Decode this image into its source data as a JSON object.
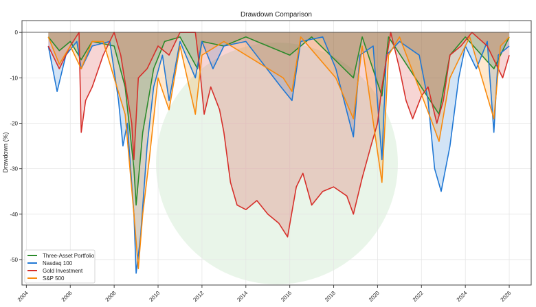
{
  "chart_data": {
    "type": "line",
    "title": "Drawdown Comparison",
    "xlabel": "",
    "ylabel": "Drawdown (%)",
    "xlim": [
      2003.8,
      2027.0
    ],
    "ylim": [
      -55.6,
      2.6
    ],
    "x_ticks": [
      "2004",
      "2006",
      "2008",
      "2010",
      "2012",
      "2014",
      "2016",
      "2018",
      "2020",
      "2022",
      "2024",
      "2026"
    ],
    "y_ticks": [
      0,
      -10,
      -20,
      -30,
      -40,
      -50
    ],
    "grid": true,
    "legend_placement": "lower-left",
    "area_fill": true,
    "series": [
      {
        "name": "Three-Asset Portfolio",
        "color": "#2a8a2a",
        "x": [
          2005,
          2005.5,
          2006,
          2006.5,
          2007,
          2008,
          2008.5,
          2008.9,
          2009.0,
          2009.3,
          2009.8,
          2010.3,
          2011,
          2011.8,
          2012,
          2013,
          2014,
          2016,
          2017,
          2018.9,
          2019.3,
          2020.2,
          2020.5,
          2022.8,
          2023.3,
          2024,
          2025.3,
          2026
        ],
        "y": [
          -1,
          -4,
          -2,
          -6,
          -2,
          -3,
          -12,
          -30,
          -38,
          -22,
          -8,
          -2,
          -1,
          -8,
          -2,
          -3,
          -1,
          -5,
          -1,
          -10,
          -1,
          -14,
          -1,
          -18,
          -5,
          -1,
          -8,
          -1
        ]
      },
      {
        "name": "Nasdaq 100",
        "color": "#1f77d4",
        "x": [
          2005,
          2005.4,
          2005.8,
          2006.3,
          2006.5,
          2007,
          2007.8,
          2008.2,
          2008.4,
          2008.6,
          2008.9,
          2009.0,
          2009.2,
          2009.5,
          2009.8,
          2010.2,
          2010.5,
          2011,
          2011.7,
          2012,
          2012.5,
          2013,
          2014,
          2015.6,
          2016.1,
          2016.5,
          2017.5,
          2018.1,
          2018.9,
          2019.2,
          2019.8,
          2020.2,
          2020.4,
          2021,
          2021.9,
          2022.3,
          2022.6,
          2022.9,
          2023.3,
          2023.7,
          2024,
          2024.5,
          2025,
          2025.3,
          2025.5,
          2026
        ],
        "y": [
          -3,
          -13,
          -5,
          -2,
          -8,
          -3,
          -2,
          -15,
          -25,
          -20,
          -40,
          -53,
          -45,
          -25,
          -12,
          -5,
          -15,
          -2,
          -10,
          -2,
          -8,
          -3,
          -2,
          -12,
          -15,
          -2,
          -1,
          -8,
          -23,
          -5,
          -3,
          -28,
          -5,
          -2,
          -5,
          -15,
          -30,
          -35,
          -25,
          -10,
          -3,
          -8,
          -2,
          -22,
          -5,
          -3
        ]
      },
      {
        "name": "Gold Investment",
        "color": "#d62f2a",
        "x": [
          2005,
          2005.5,
          2006,
          2006.4,
          2006.5,
          2006.7,
          2007,
          2007.5,
          2008,
          2008.3,
          2008.8,
          2008.9,
          2009.1,
          2009.5,
          2010,
          2010.5,
          2011,
          2011.7,
          2011.9,
          2012.1,
          2012.4,
          2012.8,
          2013,
          2013.3,
          2013.6,
          2014,
          2014.5,
          2015,
          2015.5,
          2015.9,
          2016.3,
          2016.6,
          2017,
          2017.5,
          2018,
          2018.6,
          2018.9,
          2019.3,
          2019.7,
          2020,
          2020.2,
          2020.6,
          2021,
          2021.3,
          2021.6,
          2022,
          2022.3,
          2022.7,
          2023,
          2023.3,
          2023.8,
          2024.3,
          2025,
          2025.7,
          2026
        ],
        "y": [
          -3,
          -8,
          -3,
          0,
          -22,
          -15,
          -12,
          -5,
          0,
          -5,
          -20,
          -28,
          -10,
          -8,
          -3,
          -5,
          0,
          0,
          -8,
          -18,
          -12,
          -17,
          -22,
          -33,
          -38,
          -39,
          -37,
          -40,
          -42,
          -45,
          -34,
          -31,
          -38,
          -35,
          -34,
          -36,
          -40,
          -32,
          -25,
          -20,
          -12,
          0,
          -8,
          -15,
          -19,
          -14,
          -12,
          -20,
          -15,
          -5,
          -3,
          0,
          -3,
          -10,
          -5
        ]
      },
      {
        "name": "S&P 500",
        "color": "#f98a0c",
        "x": [
          2005,
          2005.5,
          2006,
          2006.5,
          2007,
          2007.5,
          2008,
          2008.5,
          2008.9,
          2009.1,
          2009.3,
          2009.6,
          2010,
          2010.5,
          2011,
          2011.7,
          2012,
          2013,
          2015.7,
          2016.1,
          2016.5,
          2018.1,
          2018.9,
          2019.3,
          2020.2,
          2020.5,
          2021,
          2022.5,
          2022.8,
          2023.3,
          2023.8,
          2024.2,
          2025.3,
          2025.6,
          2026
        ],
        "y": [
          -1,
          -7,
          -3,
          -8,
          -2,
          -2,
          -10,
          -18,
          -40,
          -52,
          -40,
          -28,
          -10,
          -17,
          -3,
          -18,
          -5,
          -2,
          -10,
          -13,
          -1,
          -10,
          -19,
          -3,
          -33,
          -5,
          -1,
          -20,
          -24,
          -10,
          -5,
          -1,
          -19,
          -3,
          -1
        ]
      }
    ]
  }
}
